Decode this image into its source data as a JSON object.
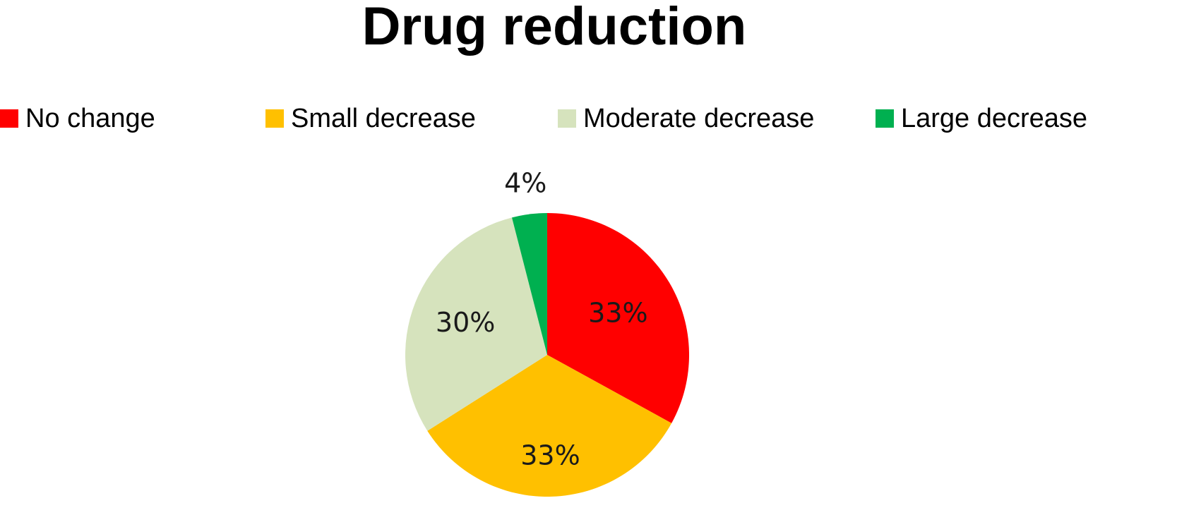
{
  "chart_data": {
    "type": "pie",
    "title": "Drug reduction",
    "legend_position": "top",
    "categories": [
      "No change",
      "Small decrease",
      "Moderate decrease",
      "Large decrease"
    ],
    "values": [
      33,
      33,
      30,
      4
    ],
    "value_labels": [
      "33%",
      "33%",
      "30%",
      "4%"
    ],
    "colors": [
      "#ff0000",
      "#ffc000",
      "#d6e3bd",
      "#00b050"
    ],
    "start_angle_deg": 0,
    "direction": "clockwise"
  }
}
